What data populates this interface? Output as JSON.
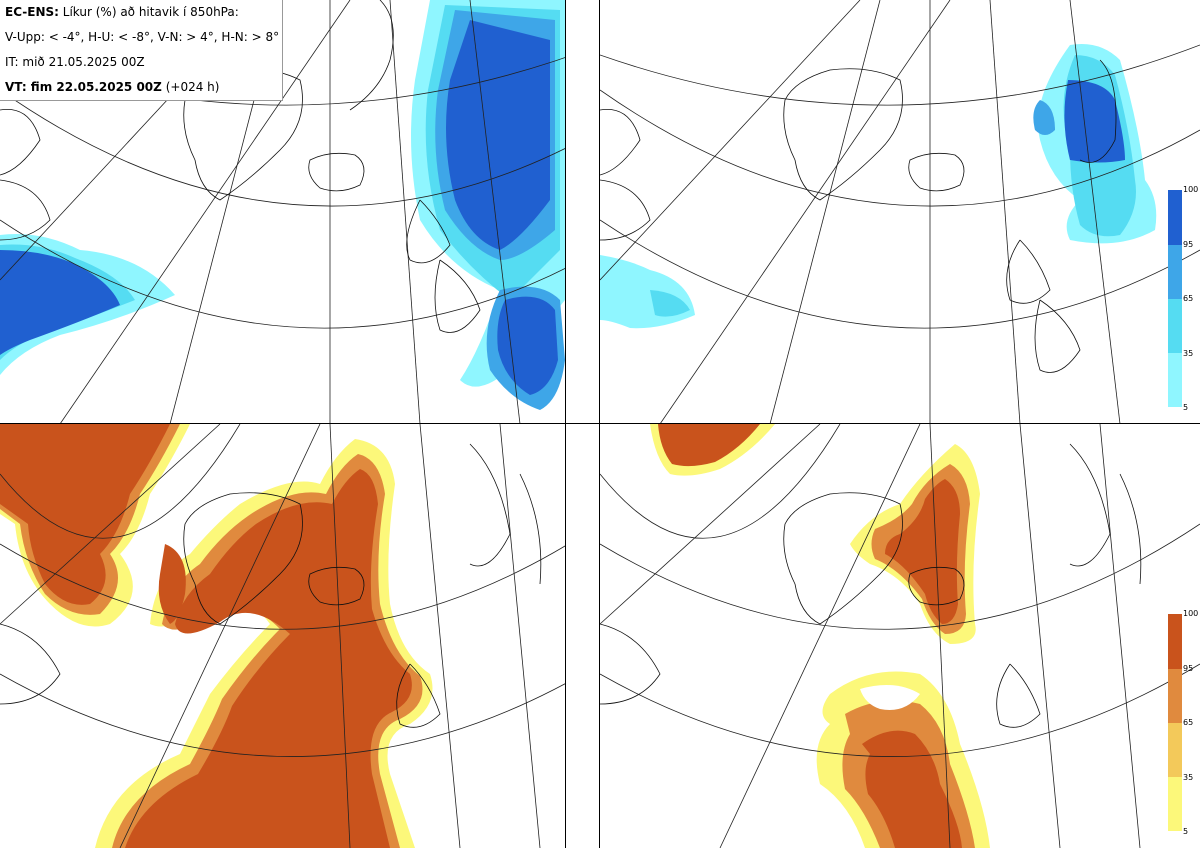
{
  "header": {
    "model": "EC-ENS:",
    "title_rest": "Líkur (%) að hitavik í 850hPa:",
    "thresholds": "V-Upp: < -4°, H-U: < -8°, V-N: > 4°, H-N: > 8°",
    "init_time": "IT: mið 21.05.2025 00Z",
    "valid_label": "VT: fim 22.05.2025 00Z",
    "lead": "(+024 h)"
  },
  "colorbar_ticks": [
    "100",
    "95",
    "65",
    "35",
    "5"
  ],
  "panels": [
    {
      "id": "V-Upp",
      "palette": "cold"
    },
    {
      "id": "H-U",
      "palette": "cold"
    },
    {
      "id": "V-N",
      "palette": "warm"
    },
    {
      "id": "H-N",
      "palette": "warm"
    }
  ],
  "colors": {
    "cold": [
      "#8ff6ff",
      "#55dcf2",
      "#3ea6e8",
      "#2060d0"
    ],
    "warm": [
      "#fcf87a",
      "#f3c95a",
      "#e08a3e",
      "#c9531c"
    ]
  }
}
